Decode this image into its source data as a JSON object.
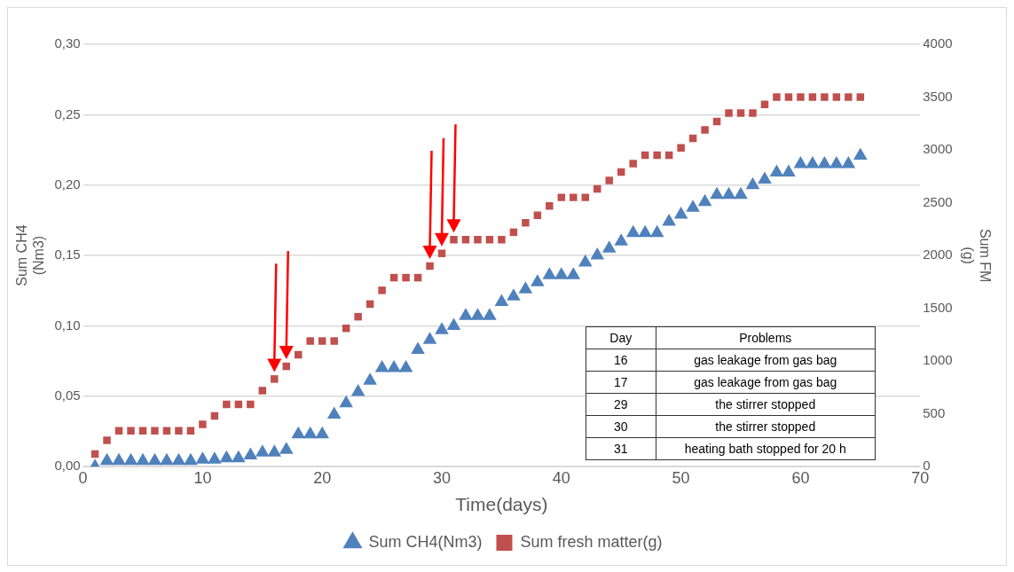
{
  "chart_data": {
    "type": "scatter",
    "xlabel": "Time(days)",
    "ylabel": "Sum CH4\n(Nm3)",
    "y2label": "Sum FM\n(g)",
    "x": [
      1,
      2,
      3,
      4,
      5,
      6,
      7,
      8,
      9,
      10,
      11,
      12,
      13,
      14,
      15,
      16,
      17,
      18,
      19,
      20,
      21,
      22,
      23,
      24,
      25,
      26,
      27,
      28,
      29,
      30,
      31,
      32,
      33,
      34,
      35,
      36,
      37,
      38,
      39,
      40,
      41,
      42,
      43,
      44,
      45,
      46,
      47,
      48,
      49,
      50,
      51,
      52,
      53,
      54,
      55,
      56,
      57,
      58,
      59,
      60,
      61,
      62,
      63,
      64,
      65
    ],
    "series": [
      {
        "name": "Sum CH4(Nm3)",
        "color": "#4f81bd",
        "marker": "triangle",
        "values": [
          0,
          0.004,
          0.004,
          0.004,
          0.004,
          0.004,
          0.004,
          0.004,
          0.004,
          0.005,
          0.005,
          0.006,
          0.006,
          0.008,
          0.01,
          0.01,
          0.012,
          0.023,
          0.023,
          0.023,
          0.037,
          0.045,
          0.053,
          0.061,
          0.07,
          0.07,
          0.07,
          0.083,
          0.09,
          0.097,
          0.1,
          0.107,
          0.107,
          0.107,
          0.117,
          0.121,
          0.126,
          0.131,
          0.136,
          0.136,
          0.136,
          0.145,
          0.15,
          0.155,
          0.16,
          0.166,
          0.166,
          0.166,
          0.174,
          0.179,
          0.184,
          0.188,
          0.193,
          0.193,
          0.193,
          0.2,
          0.204,
          0.209,
          0.209,
          0.215,
          0.215,
          0.215,
          0.215,
          0.215,
          0.221
        ]
      },
      {
        "name": "Sum fresh matter(g)",
        "color": "#c0504d",
        "marker": "square",
        "axis": "y2",
        "values": [
          120,
          250,
          340,
          340,
          340,
          340,
          340,
          340,
          340,
          400,
          480,
          590,
          590,
          590,
          720,
          830,
          950,
          1060,
          1190,
          1190,
          1190,
          1310,
          1420,
          1540,
          1670,
          1790,
          1790,
          1790,
          1900,
          2020,
          2150,
          2150,
          2150,
          2150,
          2150,
          2220,
          2310,
          2380,
          2470,
          2550,
          2550,
          2550,
          2630,
          2710,
          2790,
          2870,
          2950,
          2950,
          2950,
          3020,
          3110,
          3190,
          3270,
          3350,
          3350,
          3350,
          3430,
          3500,
          3500,
          3500,
          3500,
          3500,
          3500,
          3500,
          3500
        ]
      }
    ],
    "xlim": [
      0,
      70
    ],
    "xticks": [
      0,
      10,
      20,
      30,
      40,
      50,
      60,
      70
    ],
    "ylim": [
      0,
      0.3
    ],
    "yticks": [
      {
        "value": 0,
        "label": "0,00"
      },
      {
        "value": 0.05,
        "label": "0,05"
      },
      {
        "value": 0.1,
        "label": "0,10"
      },
      {
        "value": 0.15,
        "label": "0,15"
      },
      {
        "value": 0.2,
        "label": "0,20"
      },
      {
        "value": 0.25,
        "label": "0,25"
      },
      {
        "value": 0.3,
        "label": "0,30"
      }
    ],
    "y2lim": [
      0,
      4000
    ],
    "y2ticks": [
      0,
      500,
      1000,
      1500,
      2000,
      2500,
      3000,
      3500,
      4000
    ],
    "grid": "y",
    "legend": "bottom",
    "annotations": [
      "Day",
      "Problems",
      "16",
      "gas leakage from gas bag",
      "17",
      "gas leakage from gas bag",
      "29",
      "the stirrer stopped",
      "30",
      "the stirrer stopped",
      "31",
      "heating bath stopped for 20 h"
    ]
  }
}
